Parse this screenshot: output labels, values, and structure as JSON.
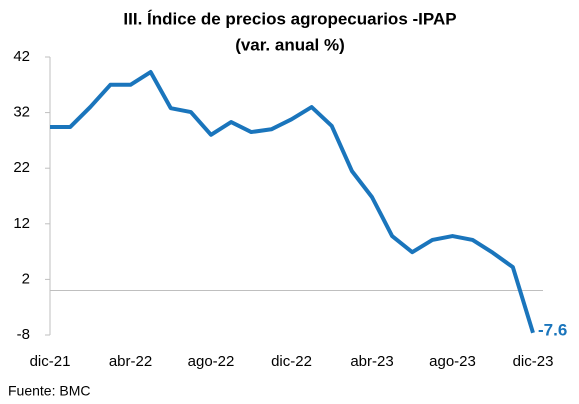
{
  "chart_data": {
    "type": "line",
    "title": "III. Índice de precios agropecuarios  -IPAP",
    "subtitle": "(var. anual %)",
    "source": "Fuente: BMC",
    "categories": [
      "dic-21",
      null,
      null,
      null,
      "abr-22",
      null,
      null,
      null,
      "ago-22",
      null,
      null,
      null,
      "dic-22",
      null,
      null,
      null,
      "abr-23",
      null,
      null,
      null,
      "ago-23",
      null,
      null,
      null,
      "dic-23"
    ],
    "series": [
      {
        "name": "IPAP",
        "color": "#1a75bc",
        "values": [
          29.4,
          29.4,
          33,
          37,
          37,
          39.3,
          32.8,
          32.1,
          28,
          30.3,
          28.5,
          29,
          30.8,
          33,
          29.6,
          21.5,
          16.8,
          9.8,
          6.9,
          9.1,
          9.8,
          9.1,
          6.8,
          4.2,
          -7.6
        ]
      }
    ],
    "ylim": [
      -8,
      42
    ],
    "yticks": [
      -8,
      2,
      12,
      22,
      32,
      42
    ],
    "grid": false
  }
}
